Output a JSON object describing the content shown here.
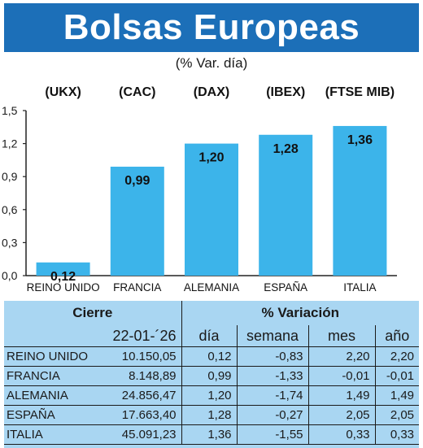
{
  "title": "Bolsas Europeas",
  "subtitle": "(% Var. día)",
  "colors": {
    "title_bg": "#1c6fb8",
    "bar": "#3cb4ea",
    "table_bg": "#a9d6f2"
  },
  "chart_data": {
    "type": "bar",
    "indices": [
      "(UKX)",
      "(CAC)",
      "(DAX)",
      "(IBEX)",
      "(FTSE MIB)"
    ],
    "categories": [
      "REINO UNIDO",
      "FRANCIA",
      "ALEMANIA",
      "ESPAÑA",
      "ITALIA"
    ],
    "values": [
      0.12,
      0.99,
      1.2,
      1.28,
      1.36
    ],
    "value_labels": [
      "0,12",
      "0,99",
      "1,20",
      "1,28",
      "1,36"
    ],
    "yticks": [
      "0,0",
      "0,3",
      "0,6",
      "0,9",
      "1,2",
      "1,5"
    ],
    "ylim": [
      0,
      1.5
    ],
    "grid": false
  },
  "table": {
    "header_cierre": "Cierre",
    "header_variacion": "% Variación",
    "date": "22-01-´26",
    "col_dia": "día",
    "col_semana": "semana",
    "col_mes": "mes",
    "col_anio": "año",
    "rows": [
      {
        "name": "REINO UNIDO",
        "cierre": "10.150,05",
        "dia": "0,12",
        "semana": "-0,83",
        "mes": "2,20",
        "anio": "2,20"
      },
      {
        "name": "FRANCIA",
        "cierre": "8.148,89",
        "dia": "0,99",
        "semana": "-1,33",
        "mes": "-0,01",
        "anio": "-0,01"
      },
      {
        "name": "ALEMANIA",
        "cierre": "24.856,47",
        "dia": "1,20",
        "semana": "-1,74",
        "mes": "1,49",
        "anio": "1,49"
      },
      {
        "name": "ESPAÑA",
        "cierre": "17.663,40",
        "dia": "1,28",
        "semana": "-0,27",
        "mes": "2,05",
        "anio": "2,05"
      },
      {
        "name": "ITALIA",
        "cierre": "45.091,23",
        "dia": "1,36",
        "semana": "-1,55",
        "mes": "0,33",
        "anio": "0,33"
      }
    ]
  }
}
